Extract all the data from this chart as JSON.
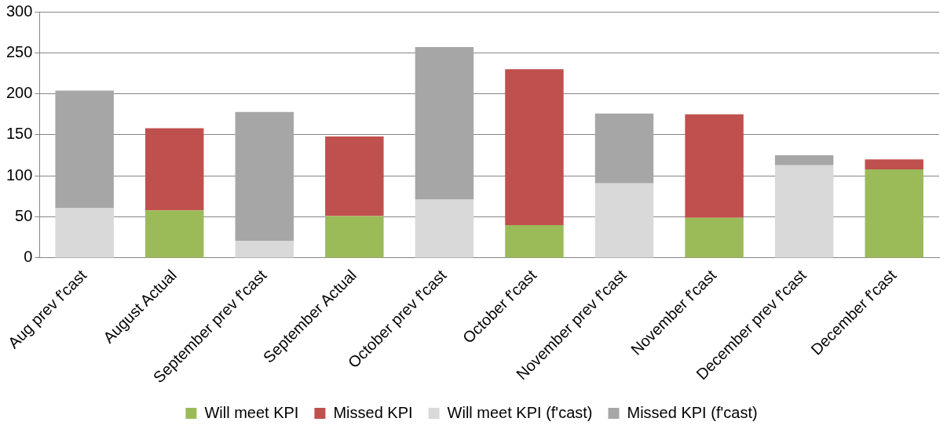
{
  "chart_data": {
    "type": "bar",
    "stacked": true,
    "categories": [
      "Aug prev f'cast",
      "August Actual",
      "September prev f'cast",
      "September Actual",
      "October prev f'cast",
      "October f'cast",
      "November prev f'cast",
      "November f'cast",
      "December prev f'cast",
      "December f'cast"
    ],
    "series": [
      {
        "name": "Will meet KPI",
        "color": "#9bbb59",
        "values": [
          null,
          58,
          null,
          51,
          null,
          40,
          null,
          49,
          null,
          108
        ]
      },
      {
        "name": "Missed KPI",
        "color": "#c0504d",
        "values": [
          null,
          100,
          null,
          97,
          null,
          190,
          null,
          126,
          null,
          12
        ]
      },
      {
        "name": "Will meet KPI (f'cast)",
        "color": "#d9d9d9",
        "values": [
          61,
          null,
          21,
          null,
          71,
          null,
          91,
          null,
          113,
          null
        ]
      },
      {
        "name": "Missed KPI (f'cast)",
        "color": "#a6a6a6",
        "values": [
          143,
          null,
          157,
          null,
          186,
          null,
          85,
          null,
          12,
          null
        ]
      }
    ],
    "ylim": [
      0,
      300
    ],
    "yticks": [
      0,
      50,
      100,
      150,
      200,
      250,
      300
    ],
    "grid": "y",
    "legend": "bottom"
  }
}
